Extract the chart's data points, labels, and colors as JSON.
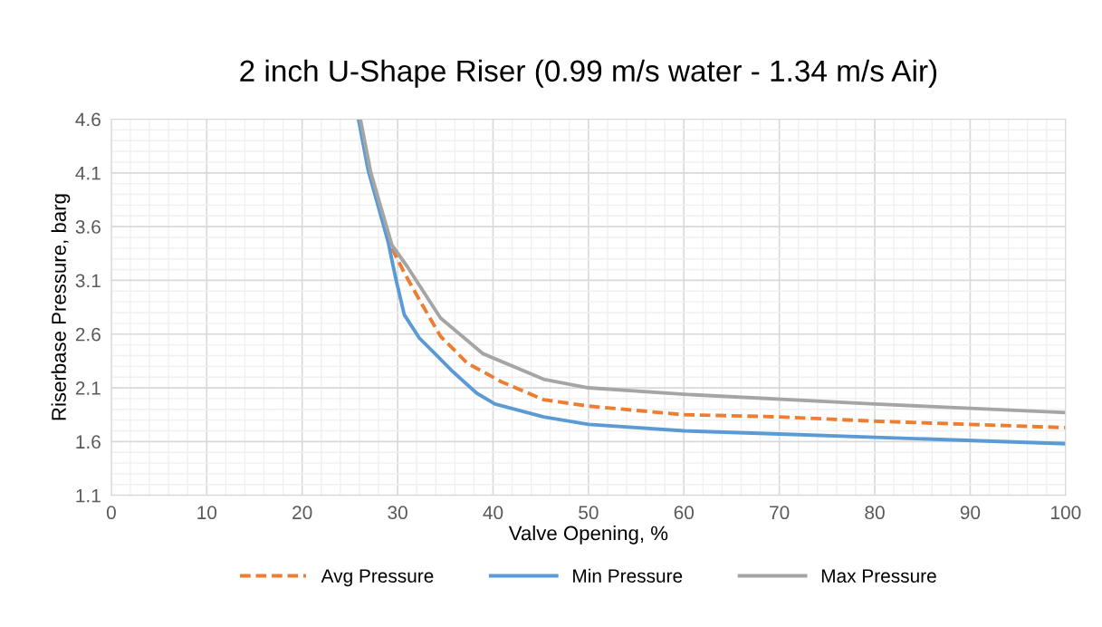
{
  "chart_data": {
    "type": "line",
    "title": "2 inch U-Shape Riser (0.99 m/s water - 1.34 m/s Air)",
    "xlabel": "Valve Opening, %",
    "ylabel": "Riserbase Pressure, barg",
    "xlim": [
      0,
      100
    ],
    "xticks": [
      0,
      10,
      20,
      30,
      40,
      50,
      60,
      70,
      80,
      90,
      100
    ],
    "ylim": [
      1.1,
      4.6
    ],
    "yticks": [
      1.1,
      1.6,
      2.1,
      2.6,
      3.1,
      3.6,
      4.1,
      4.6
    ],
    "grid": true,
    "legend": "bottom",
    "series": [
      {
        "name": "Avg Pressure",
        "color": "#ed7d31",
        "line_style": "dashed",
        "x": [
          29.4,
          30.7,
          32.6,
          34.5,
          37.3,
          40.8,
          45.3,
          50,
          60,
          70,
          80,
          100
        ],
        "values": [
          3.4,
          3.17,
          2.87,
          2.58,
          2.33,
          2.16,
          1.99,
          1.93,
          1.85,
          1.83,
          1.79,
          1.73
        ]
      },
      {
        "name": "Min Pressure",
        "color": "#5b9bd5",
        "line_style": "solid",
        "x": [
          25.9,
          26.9,
          29.0,
          29.8,
          30.7,
          32.3,
          33.9,
          35.8,
          38.3,
          40.2,
          45.3,
          50,
          60,
          70,
          80,
          100
        ],
        "values": [
          4.6,
          4.13,
          3.46,
          3.12,
          2.78,
          2.56,
          2.42,
          2.25,
          2.05,
          1.95,
          1.83,
          1.76,
          1.7,
          1.67,
          1.64,
          1.58
        ]
      },
      {
        "name": "Max Pressure",
        "color": "#a5a5a5",
        "line_style": "solid",
        "x": [
          26.1,
          27.2,
          29.4,
          31.0,
          34.5,
          38.9,
          45.3,
          50,
          60,
          80,
          100
        ],
        "values": [
          4.6,
          4.1,
          3.43,
          3.23,
          2.75,
          2.42,
          2.18,
          2.1,
          2.04,
          1.95,
          1.87
        ]
      }
    ]
  }
}
